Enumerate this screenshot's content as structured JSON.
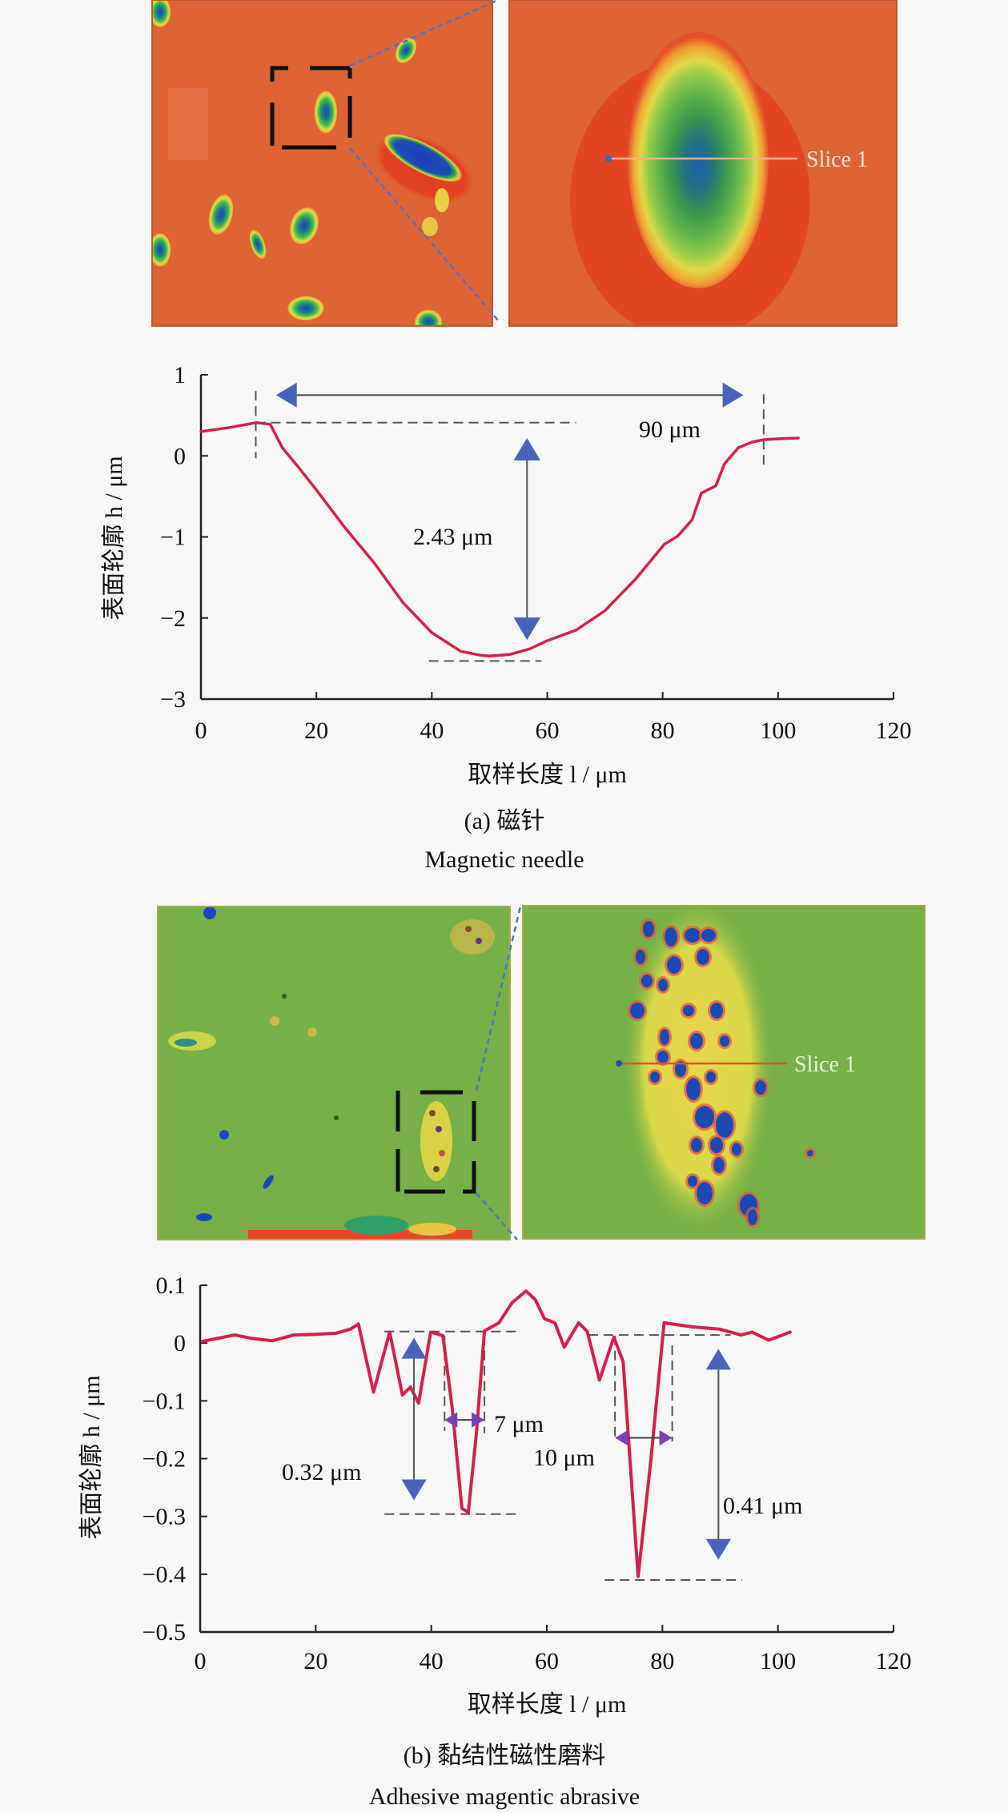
{
  "colors": {
    "background": "#f7f7f7",
    "curve": "#d4204a",
    "arrow_blue": "#4a63b8",
    "arrow_purple": "#7a3fb0",
    "dash": "#555555",
    "afm_a_bg": "#dd6535",
    "afm_b_bg": "#76b046"
  },
  "figure_a": {
    "images": {
      "slice_label": "Slice 1"
    },
    "caption_cn": "(a) 磁针",
    "caption_en": "Magnetic needle"
  },
  "figure_b": {
    "images": {
      "slice_label": "Slice 1"
    },
    "caption_cn": "(b) 黏结性磁性磨料",
    "caption_en": "Adhesive magentic abrasive"
  },
  "chart_data": [
    {
      "type": "line",
      "id": "a",
      "title": "",
      "xlabel": "取样长度 l / μm",
      "ylabel": "表面轮廓 h / μm",
      "xlim": [
        0,
        120
      ],
      "ylim": [
        -3,
        1
      ],
      "xticks": [
        0,
        20,
        40,
        60,
        80,
        100,
        120
      ],
      "yticks": [
        1,
        0,
        -1,
        -2,
        -3
      ],
      "xtick_labels": [
        "0",
        "20",
        "40",
        "60",
        "80",
        "100",
        "120"
      ],
      "ytick_labels": [
        "1",
        "0",
        "−1",
        "−2",
        "−3"
      ],
      "grid": false,
      "series": [
        {
          "name": "Slice 1",
          "x": [
            0,
            5,
            9.6,
            12,
            14.1,
            17,
            20,
            25,
            30,
            35,
            40,
            45,
            48.5,
            50,
            53.5,
            57,
            60,
            65,
            70,
            75.3,
            80.3,
            82.6,
            85.1,
            86.7,
            89.2,
            90.7,
            93.1,
            95.5,
            97.6,
            100,
            103.5
          ],
          "y": [
            0.3,
            0.35,
            0.41,
            0.39,
            0.1,
            -0.15,
            -0.42,
            -0.89,
            -1.32,
            -1.81,
            -2.18,
            -2.41,
            -2.46,
            -2.47,
            -2.45,
            -2.38,
            -2.28,
            -2.15,
            -1.91,
            -1.52,
            -1.09,
            -0.99,
            -0.79,
            -0.46,
            -0.37,
            -0.1,
            0.1,
            0.17,
            0.2,
            0.21,
            0.22
          ]
        }
      ],
      "annotations": [
        {
          "type": "width",
          "text": "90 μm",
          "from": 13,
          "to": 94,
          "at": 0.75
        },
        {
          "type": "depth",
          "text": "2.43 μm",
          "x": 56.5,
          "from": 0.22,
          "to": -2.27
        },
        {
          "type": "hline",
          "y": 0.41,
          "from": 9.5,
          "to": 65
        },
        {
          "type": "hline",
          "y": -2.53,
          "from": 39.5,
          "to": 59
        },
        {
          "type": "vline",
          "x": 9.5,
          "from": 0.8,
          "to": -0.03
        },
        {
          "type": "vline",
          "x": 97.5,
          "from": 0.76,
          "to": -0.13
        }
      ]
    },
    {
      "type": "line",
      "id": "b",
      "title": "",
      "xlabel": "取样长度 l / μm",
      "ylabel": "表面轮廓 h / μm",
      "xlim": [
        0,
        120
      ],
      "ylim": [
        -0.5,
        0.1
      ],
      "xticks": [
        0,
        20,
        40,
        60,
        80,
        100,
        120
      ],
      "yticks": [
        0.1,
        0,
        -0.1,
        -0.2,
        -0.3,
        -0.4,
        -0.5
      ],
      "xtick_labels": [
        "0",
        "20",
        "40",
        "60",
        "80",
        "100",
        "120"
      ],
      "ytick_labels": [
        "0.1",
        "0",
        "−0.1",
        "−0.2",
        "−0.3",
        "−0.4",
        "−0.5"
      ],
      "grid": false,
      "series": [
        {
          "name": "Slice 1",
          "x": [
            0.4,
            3,
            6,
            9,
            12.5,
            16.2,
            20,
            23.5,
            26,
            27.4,
            30,
            32.8,
            35,
            36.4,
            37.8,
            39.9,
            42,
            43.6,
            45.3,
            46.4,
            47.8,
            49.2,
            51.7,
            54,
            56.4,
            58,
            59.6,
            61.4,
            63,
            65.5,
            67,
            69.1,
            71.6,
            73.2,
            75.8,
            78,
            80.3,
            85.3,
            89.9,
            93.6,
            95.5,
            98.4,
            102.1
          ],
          "y": [
            0.003,
            0.008,
            0.014,
            0.008,
            0.004,
            0.014,
            0.015,
            0.017,
            0.024,
            0.033,
            -0.085,
            0.019,
            -0.09,
            -0.076,
            -0.104,
            0.019,
            0.013,
            -0.11,
            -0.286,
            -0.293,
            -0.157,
            0.021,
            0.035,
            0.07,
            0.09,
            0.075,
            0.042,
            0.035,
            -0.007,
            0.035,
            0.02,
            -0.064,
            0.01,
            -0.032,
            -0.404,
            -0.203,
            0.035,
            0.028,
            0.024,
            0.014,
            0.019,
            0.005,
            0.019
          ]
        }
      ],
      "annotations": [
        {
          "type": "depth",
          "text": "0.32 μm",
          "x": 37,
          "from": 0.009,
          "to": -0.272
        },
        {
          "type": "width",
          "text": "7 μm",
          "from": 42.3,
          "to": 49.2,
          "at": -0.133
        },
        {
          "type": "width",
          "text": "10 μm",
          "from": 71.8,
          "to": 81.7,
          "at": -0.164
        },
        {
          "type": "depth",
          "text": "0.41 μm",
          "x": 89.7,
          "from": -0.01,
          "to": -0.375
        },
        {
          "type": "hline",
          "y": 0.02,
          "from": 31.9,
          "to": 55.1
        },
        {
          "type": "hline",
          "y": -0.296,
          "from": 31.9,
          "to": 55.1
        },
        {
          "type": "hline",
          "y": 0.014,
          "from": 67.2,
          "to": 91.8
        },
        {
          "type": "hline",
          "y": -0.41,
          "from": 70,
          "to": 93.8
        },
        {
          "type": "vline",
          "x": 42.3,
          "from": 0.013,
          "to": -0.152
        },
        {
          "type": "vline",
          "x": 49.2,
          "from": 0.013,
          "to": -0.156
        },
        {
          "type": "vline",
          "x": 71.8,
          "from": 0.013,
          "to": -0.164
        },
        {
          "type": "vline",
          "x": 81.7,
          "from": -0.004,
          "to": -0.17
        }
      ]
    }
  ]
}
